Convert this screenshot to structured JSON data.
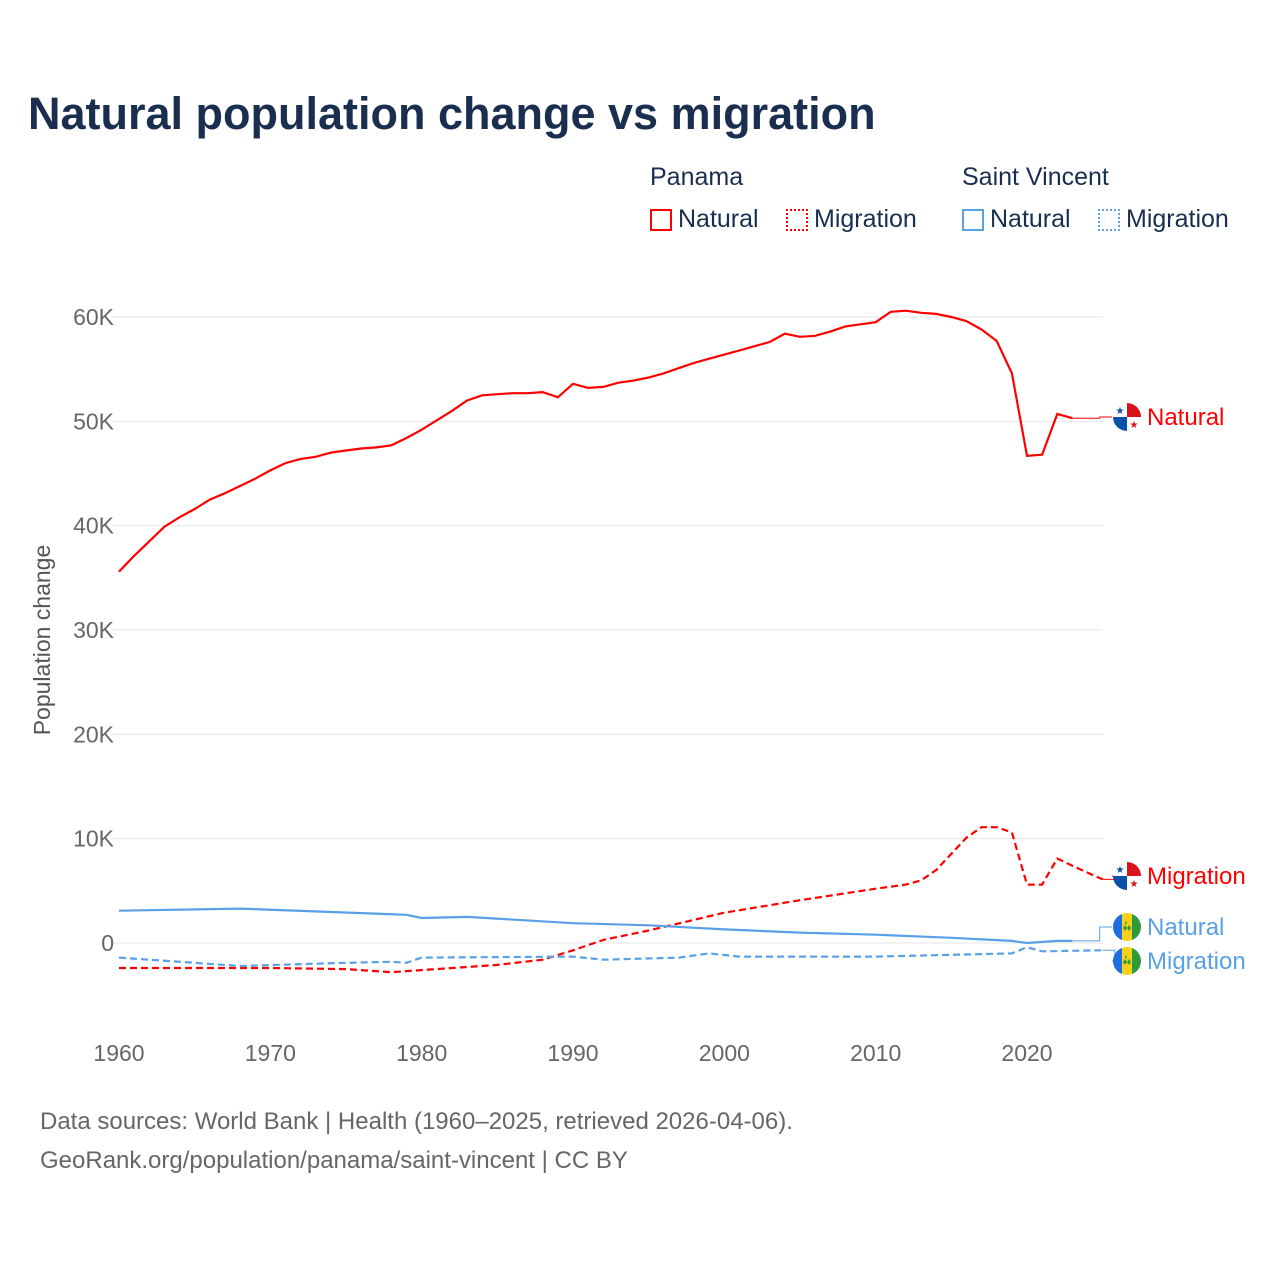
{
  "title": "Natural population change vs migration",
  "legend": {
    "groups": [
      {
        "name": "Panama",
        "color": "#ff0000",
        "items": [
          "Natural",
          "Migration"
        ]
      },
      {
        "name": "Saint Vincent",
        "color": "#5aa0e6",
        "items": [
          "Natural",
          "Migration"
        ]
      }
    ]
  },
  "footer": {
    "line1": "Data sources: World Bank | Health (1960–2025, retrieved 2026-04-06).",
    "line2": "GeoRank.org/population/panama/saint-vincent | CC BY"
  },
  "chart_data": {
    "type": "line",
    "title": "Natural population change vs migration",
    "ylabel": "Population change",
    "xlabel": "",
    "xlim": [
      1960,
      2025
    ],
    "ylim": [
      -8000,
      62000
    ],
    "xticks": [
      "1960",
      "1970",
      "1980",
      "1990",
      "2000",
      "2010",
      "2020"
    ],
    "yticks": [
      {
        "v": 0,
        "l": "0"
      },
      {
        "v": 10000,
        "l": "10K"
      },
      {
        "v": 20000,
        "l": "20K"
      },
      {
        "v": 30000,
        "l": "30K"
      },
      {
        "v": 40000,
        "l": "40K"
      },
      {
        "v": 50000,
        "l": "50K"
      },
      {
        "v": 60000,
        "l": "60K"
      }
    ],
    "grid": true,
    "series": [
      {
        "name": "Panama Natural",
        "label": "Natural",
        "color": "#ff0000",
        "dash": false,
        "flag": "panama",
        "x": [
          1960,
          1961,
          1962,
          1963,
          1964,
          1965,
          1966,
          1967,
          1968,
          1969,
          1970,
          1971,
          1972,
          1973,
          1974,
          1975,
          1976,
          1977,
          1978,
          1979,
          1980,
          1981,
          1982,
          1983,
          1984,
          1985,
          1986,
          1987,
          1988,
          1989,
          1990,
          1991,
          1992,
          1993,
          1994,
          1995,
          1996,
          1997,
          1998,
          1999,
          2000,
          2001,
          2002,
          2003,
          2004,
          2005,
          2006,
          2007,
          2008,
          2009,
          2010,
          2011,
          2012,
          2013,
          2014,
          2015,
          2016,
          2017,
          2018,
          2019,
          2020,
          2021,
          2022,
          2023
        ],
        "y": [
          35600,
          37100,
          38500,
          39900,
          40800,
          41600,
          42500,
          43100,
          43800,
          44500,
          45300,
          46000,
          46400,
          46600,
          47000,
          47200,
          47400,
          47500,
          47700,
          48400,
          49200,
          50100,
          51000,
          52000,
          52500,
          52600,
          52700,
          52700,
          52800,
          52300,
          53600,
          53200,
          53300,
          53700,
          53900,
          54200,
          54600,
          55100,
          55600,
          56000,
          56400,
          56800,
          57200,
          57600,
          58400,
          58100,
          58200,
          58600,
          59100,
          59300,
          59500,
          60500,
          60600,
          60400,
          60300,
          60000,
          59600,
          58800,
          57700,
          54600,
          46700,
          46800,
          50700,
          50300
        ]
      },
      {
        "name": "Panama Migration",
        "label": "Migration",
        "color": "#ff0000",
        "dash": true,
        "flag": "panama",
        "x": [
          1960,
          1970,
          1975,
          1978,
          1980,
          1985,
          1988,
          1990,
          1992,
          1995,
          2000,
          2005,
          2010,
          2012,
          2013,
          2014,
          2016,
          2017,
          2018,
          2019,
          2020,
          2021,
          2022,
          2023,
          2025
        ],
        "y": [
          -2400,
          -2400,
          -2500,
          -2800,
          -2600,
          -2100,
          -1600,
          -700,
          300,
          1200,
          2900,
          4100,
          5200,
          5600,
          6000,
          7000,
          10100,
          11100,
          11100,
          10600,
          5600,
          5600,
          8100,
          7400,
          6100
        ]
      },
      {
        "name": "Saint Vincent Natural",
        "label": "Natural",
        "color": "#5aa0e6",
        "dash": false,
        "flag": "svg",
        "x": [
          1960,
          1968,
          1979,
          1980,
          1983,
          1990,
          1995,
          2000,
          2005,
          2010,
          2015,
          2019,
          2020,
          2022,
          2023
        ],
        "y": [
          3100,
          3300,
          2700,
          2400,
          2500,
          1900,
          1700,
          1300,
          1000,
          800,
          500,
          200,
          0,
          200,
          200
        ]
      },
      {
        "name": "Saint Vincent Migration",
        "label": "Migration",
        "color": "#5aa0e6",
        "dash": true,
        "flag": "svg",
        "x": [
          1960,
          1968,
          1975,
          1978,
          1979,
          1980,
          1990,
          1992,
          1997,
          1999,
          2001,
          2010,
          2019,
          2020,
          2021,
          2025
        ],
        "y": [
          -1400,
          -2200,
          -1900,
          -1800,
          -1900,
          -1400,
          -1300,
          -1600,
          -1400,
          -1000,
          -1300,
          -1300,
          -1000,
          -400,
          -800,
          -700
        ]
      }
    ]
  }
}
